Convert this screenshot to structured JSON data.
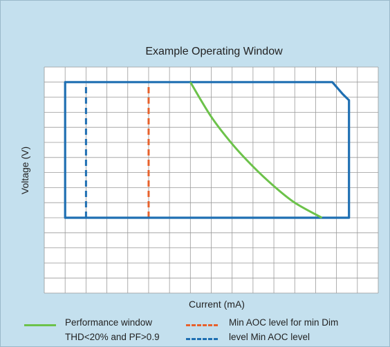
{
  "chart_data": {
    "type": "line",
    "title": "Example Operating Window",
    "xlabel": "Current (mA)",
    "ylabel": "Voltage (V)",
    "xlim": [
      0,
      16
    ],
    "ylim": [
      0,
      15
    ],
    "grid": true,
    "ticks_labeled": false,
    "operating_window": {
      "color": "#1f6fb2",
      "outline": [
        {
          "x": 1,
          "y": 14
        },
        {
          "x": 13.8,
          "y": 14
        },
        {
          "x": 14.3,
          "y": 13.2
        },
        {
          "x": 14.6,
          "y": 12.8
        },
        {
          "x": 14.6,
          "y": 5
        },
        {
          "x": 1,
          "y": 5
        }
      ]
    },
    "series": [
      {
        "name": "Performance window THD<20% and PF>0.9",
        "style": "solid",
        "color": "#6cc24a",
        "x": [
          7,
          8,
          9,
          10,
          11,
          12,
          13.3
        ],
        "y": [
          14,
          11.7,
          9.9,
          8.4,
          7.1,
          6,
          5
        ]
      },
      {
        "name": "Min AOC level for min Dim",
        "style": "dashed",
        "color": "#e8612c",
        "x": [
          5,
          5
        ],
        "y": [
          5,
          14
        ]
      },
      {
        "name": "level Min AOC level",
        "style": "dashed",
        "color": "#1f6fb2",
        "x": [
          2,
          2
        ],
        "y": [
          5,
          14
        ]
      }
    ],
    "legend_position": "bottom",
    "colors": {
      "plot_background": "#ffffff",
      "grid": "#999999",
      "axis_text": "#222222"
    }
  },
  "legend": {
    "items": [
      {
        "text_line1": "Performance window",
        "text_line2": "THD<20% and PF>0.9",
        "color": "#6cc24a",
        "style": "solid"
      },
      {
        "text_line1": "Min AOC level for min Dim",
        "color": "#e8612c",
        "style": "dashed"
      },
      {
        "text_line1": "level Min AOC level",
        "color": "#1f6fb2",
        "style": "dashed"
      }
    ]
  }
}
